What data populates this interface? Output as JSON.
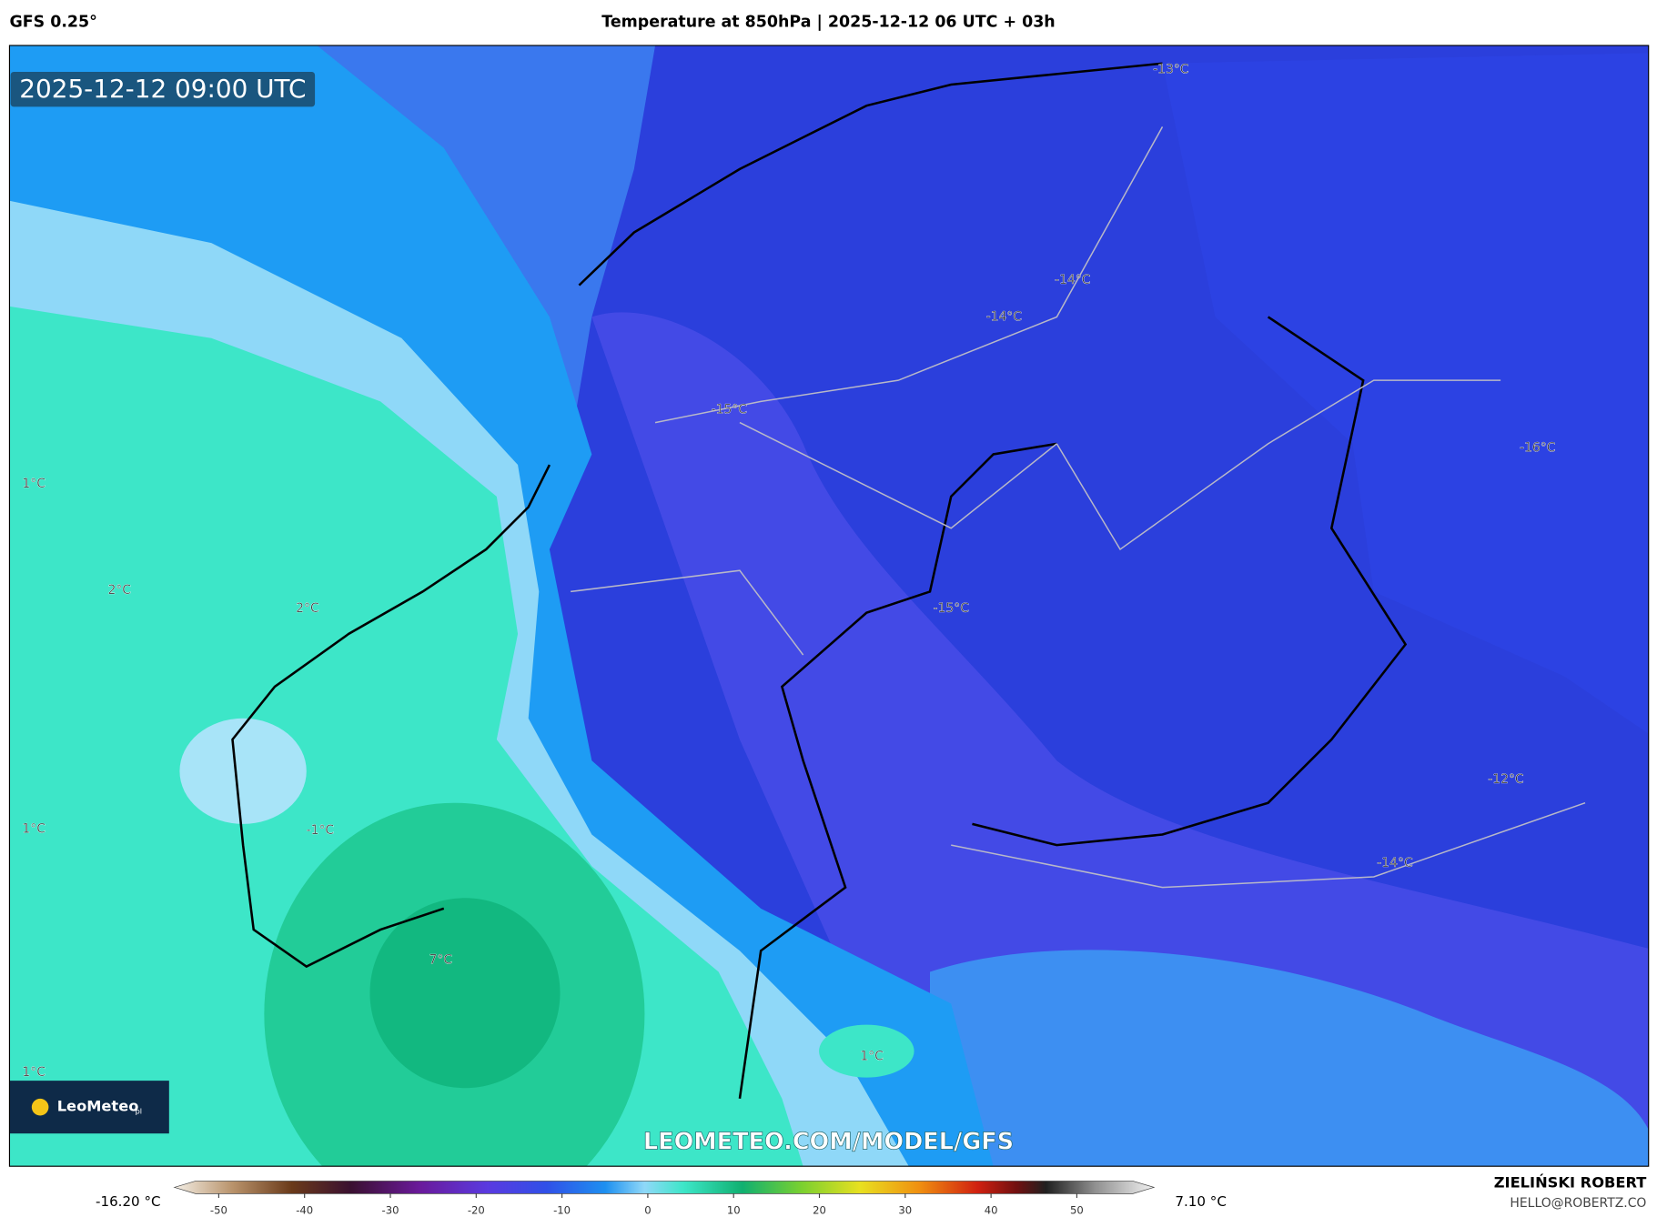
{
  "header": {
    "model": "GFS 0.25°",
    "title": "Temperature at 850hPa | 2025-12-12 06 UTC + 03h"
  },
  "map": {
    "timestamp": "2025-12-12 09:00 UTC",
    "watermark": "LEOMETEO.COM/MODEL/GFS",
    "logo": {
      "name": "LeoMeteo",
      "suffix": "pl"
    },
    "contour_labels": [
      "-13°C",
      "-14°C",
      "-14°C",
      "-15°C",
      "-16°C",
      "1°C",
      "2°C",
      "2°C",
      "-15°C",
      "-12°C",
      "1°C",
      "-1°C",
      "-14°C",
      "7°C",
      "1°C",
      "1°C"
    ]
  },
  "colorbar": {
    "min_label": "-16.20 °C",
    "max_label": "7.10 °C",
    "ticks": [
      -50,
      -40,
      -30,
      -20,
      -10,
      0,
      10,
      20,
      30,
      40,
      50
    ]
  },
  "footer": {
    "author": "ZIELIŃSKI ROBERT",
    "email": "HELLO@ROBERTZ.CO"
  }
}
